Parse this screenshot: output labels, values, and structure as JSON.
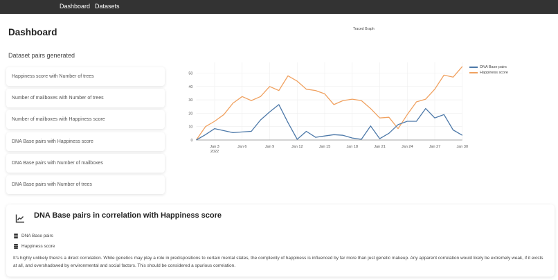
{
  "nav": {
    "items": [
      "Dashboard",
      "Datasets"
    ]
  },
  "page": {
    "title": "Dashboard",
    "subtitle": "Dataset pairs generated"
  },
  "pairs": [
    "Happiness score with Number of trees",
    "Number of mailboxes with Number of trees",
    "Number of mailboxes with Happiness score",
    "DNA Base pairs with Happiness score",
    "DNA Base pairs with Number of mailboxes",
    "DNA Base pairs with Number of trees"
  ],
  "chart": {
    "title": "Traced Graph",
    "legend": [
      "DNA Base pairs",
      "Happiness score"
    ],
    "colors": {
      "dna": "#4c78a8",
      "happiness": "#f0a160"
    }
  },
  "chart_data": {
    "type": "line",
    "title": "Traced Graph",
    "xlabel": "",
    "ylabel": "",
    "ylim": [
      0,
      58
    ],
    "yticks": [
      0,
      10,
      20,
      30,
      40,
      50
    ],
    "xtick_labels": [
      "Jan 3\n2022",
      "Jan 6",
      "Jan 9",
      "Jan 12",
      "Jan 15",
      "Jan 18",
      "Jan 21",
      "Jan 24",
      "Jan 27",
      "Jan 30"
    ],
    "grid": true,
    "legend_position": "top-right",
    "x": [
      "2022-01-01",
      "2022-01-02",
      "2022-01-03",
      "2022-01-04",
      "2022-01-05",
      "2022-01-06",
      "2022-01-07",
      "2022-01-08",
      "2022-01-09",
      "2022-01-10",
      "2022-01-11",
      "2022-01-12",
      "2022-01-13",
      "2022-01-14",
      "2022-01-15",
      "2022-01-16",
      "2022-01-17",
      "2022-01-18",
      "2022-01-19",
      "2022-01-20",
      "2022-01-21",
      "2022-01-22",
      "2022-01-23",
      "2022-01-24",
      "2022-01-25",
      "2022-01-26",
      "2022-01-27",
      "2022-01-28",
      "2022-01-29",
      "2022-01-30"
    ],
    "series": [
      {
        "name": "DNA Base pairs",
        "color": "#4c78a8",
        "values": [
          0,
          4,
          8.5,
          7,
          5.5,
          6,
          6.5,
          15,
          21,
          26.5,
          13,
          0.5,
          6.5,
          2,
          3,
          4,
          3.5,
          1.5,
          0.5,
          10.5,
          1,
          5,
          11.5,
          14,
          14,
          23.5,
          16.5,
          19,
          7.5,
          3.5
        ]
      },
      {
        "name": "Happiness score",
        "color": "#f0a160",
        "values": [
          0,
          10,
          14,
          19,
          27.5,
          32.5,
          29.5,
          32.5,
          40,
          37,
          48,
          44,
          38,
          37,
          34.5,
          26.5,
          29.5,
          30.5,
          29.5,
          23.5,
          16.5,
          17,
          8.5,
          19,
          28.5,
          30.5,
          38,
          48.5,
          47,
          55
        ]
      }
    ]
  },
  "detail": {
    "title": "DNA Base pairs in correlation with Happiness score",
    "datasets": [
      "DNA Base pairs",
      "Happiness score"
    ],
    "description": "It's highly unlikely there's a direct correlation. While genetics may play a role in predispositions to certain mental states, the complexity of happiness is influenced by far more than just genetic makeup. Any apparent correlation would likely be extremely weak, if it exists at all, and overshadowed by environmental and social factors. This should be considered a spurious correlation."
  }
}
